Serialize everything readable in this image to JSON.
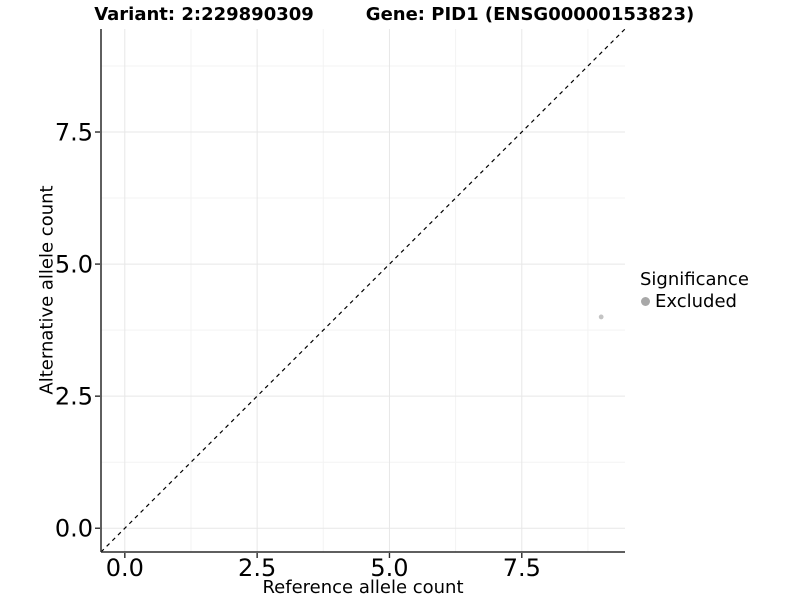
{
  "header": {
    "variant_title": "Variant: 2:229890309",
    "gene_title": "Gene: PID1 (ENSG00000153823)"
  },
  "chart_data": {
    "type": "scatter",
    "xlabel": "Reference allele count",
    "ylabel": "Alternative allele count",
    "x_domain": [
      -0.45,
      9.45
    ],
    "y_domain": [
      -0.45,
      9.45
    ],
    "x_tick_values": [
      0,
      2.5,
      5,
      7.5
    ],
    "x_tick_labels": [
      "0.0",
      "2.5",
      "5.0",
      "7.5"
    ],
    "y_tick_values": [
      0,
      2.5,
      5,
      7.5
    ],
    "y_tick_labels": [
      "0.0",
      "2.5",
      "5.0",
      "7.5"
    ],
    "x_minor_tick_values": [
      1.25,
      3.75,
      6.25,
      8.75
    ],
    "y_minor_tick_values": [
      1.25,
      3.75,
      6.25,
      8.75
    ],
    "grid": {
      "on": true,
      "major_color": "#e7e7e7",
      "minor_color": "#f3f3f3"
    },
    "axis_line_color": "#2a2a2a",
    "identity_line": {
      "slope": 1,
      "intercept": 0,
      "style": "dashed",
      "color": "#000000"
    },
    "series": [
      {
        "name": "Excluded",
        "color": "#c4c4c4",
        "points": [
          {
            "x": 9,
            "y": 4
          }
        ]
      }
    ],
    "legend_position": "right"
  },
  "legend": {
    "title": "Significance",
    "items": [
      {
        "label": "Excluded",
        "swatch_color": "#a8a8a8"
      }
    ]
  }
}
